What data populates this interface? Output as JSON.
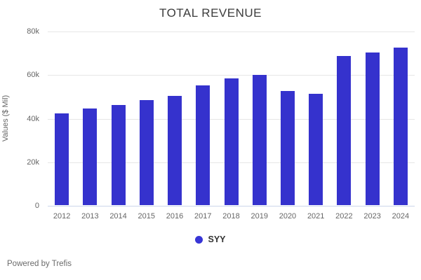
{
  "chart_data": {
    "type": "bar",
    "title": "TOTAL REVENUE",
    "ylabel": "Values ($ Mil)",
    "xlabel": "",
    "categories": [
      "2012",
      "2013",
      "2014",
      "2015",
      "2016",
      "2017",
      "2018",
      "2019",
      "2020",
      "2021",
      "2022",
      "2023",
      "2024"
    ],
    "series": [
      {
        "name": "SYY",
        "values": [
          42000,
          44200,
          46000,
          48200,
          50000,
          55000,
          58300,
          59700,
          52400,
          51000,
          68300,
          70200,
          72400
        ]
      }
    ],
    "ylim": [
      0,
      80000
    ],
    "ytick_labels": [
      "0",
      "20k",
      "40k",
      "60k",
      "80k"
    ],
    "grid": "horizontal",
    "legend_position": "bottom-center"
  },
  "legend": {
    "label": "SYY"
  },
  "footer": {
    "text": "Powered by Trefis"
  },
  "colors": {
    "bar": "#3532cd",
    "legend_marker": "#3835d6",
    "gridline": "#e6e6e6",
    "axis_line": "#ccd6eb",
    "tick_text": "#666666",
    "title_text": "#3c3c3c",
    "legend_text": "#333333",
    "background": "#ffffff"
  }
}
